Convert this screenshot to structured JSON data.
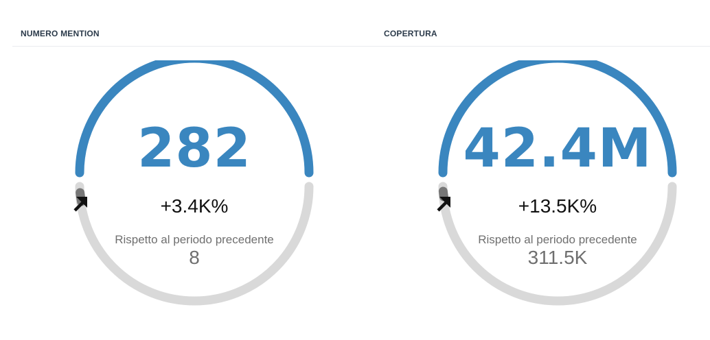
{
  "widgets": [
    {
      "title": "NUMERO MENTION",
      "value": "282",
      "change": "+3.4K%",
      "compare_label": "Rispetto al periodo precedente",
      "compare_value": "8",
      "trend_icon": "arrow-up-right-icon"
    },
    {
      "title": "COPERTURA",
      "value": "42.4M",
      "change": "+13.5K%",
      "compare_label": "Rispetto al periodo precedente",
      "compare_value": "311.5K",
      "trend_icon": "arrow-up-right-icon"
    }
  ],
  "colors": {
    "accent_blue": "#3a86bf",
    "track_gray": "#d9d9d9",
    "marker_gray": "#777777",
    "title_text": "#2b3a4a",
    "secondary_text": "#6f6f6f"
  }
}
